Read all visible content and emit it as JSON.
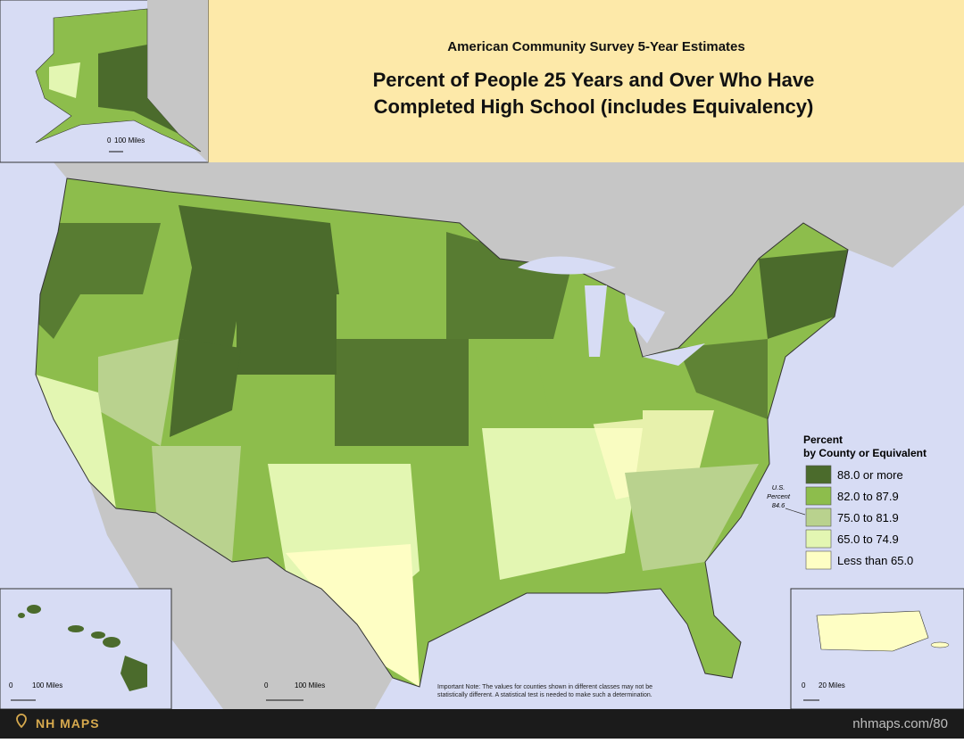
{
  "header": {
    "subtitle": "American Community Survey 5-Year Estimates",
    "title_lines": [
      "Percent of People 25 Years and Over Who Have",
      "Completed High School (includes Equivalency)"
    ]
  },
  "legend": {
    "title_lines": [
      "Percent",
      "by County or Equivalent"
    ],
    "items": [
      {
        "label": "88.0 or more",
        "color": "#4b6b2c"
      },
      {
        "label": "82.0 to 87.9",
        "color": "#8dbd4c"
      },
      {
        "label": "75.0 to 81.9",
        "color": "#b9d28e"
      },
      {
        "label": "65.0 to 74.9",
        "color": "#e3f6b2"
      },
      {
        "label": "Less than 65.0",
        "color": "#fefec4"
      }
    ]
  },
  "us_percent": {
    "label_lines": [
      "U.S.",
      "Percent"
    ],
    "value": 84.6
  },
  "scale_bars": {
    "alaska": {
      "start": "0",
      "end": "100 Miles"
    },
    "hawaii": {
      "start": "0",
      "end": "100 Miles"
    },
    "mainland": {
      "start": "0",
      "end": "100 Miles"
    },
    "puerto_rico": {
      "start": "0",
      "end": "20 Miles"
    }
  },
  "note_lines": [
    "Important Note: The values for counties shown in different classes may not be",
    "statistically different.  A statistical test is needed to make such a determination."
  ],
  "footer": {
    "brand": "NH MAPS",
    "link": "nhmaps.com/80"
  }
}
